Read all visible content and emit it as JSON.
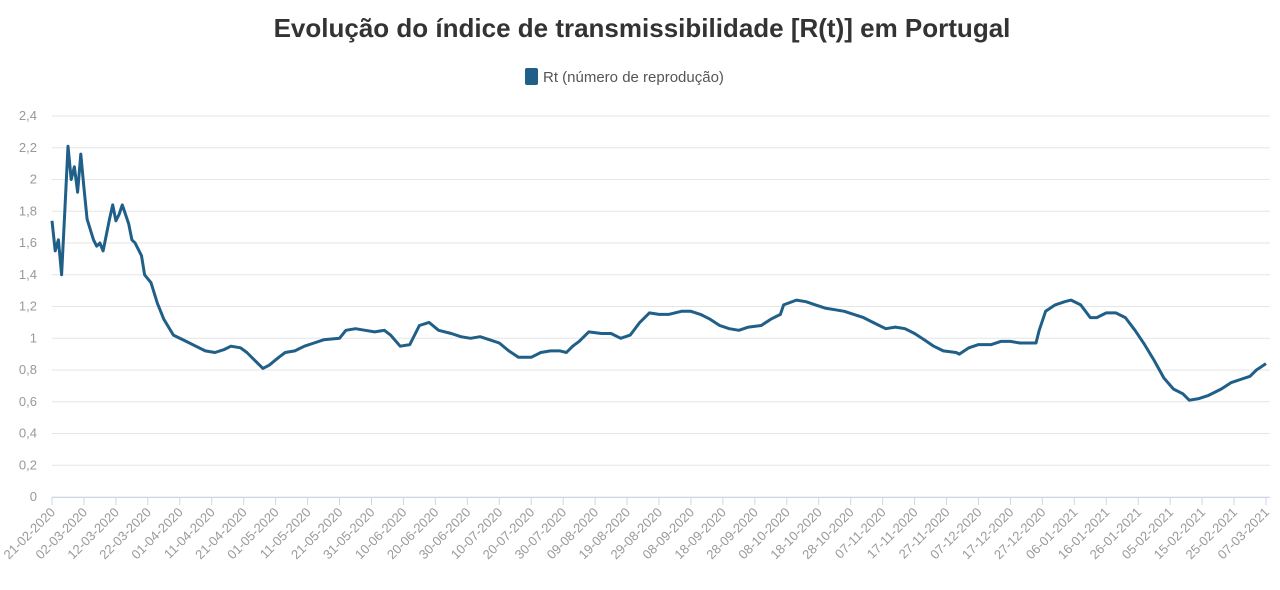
{
  "chart_data": {
    "type": "line",
    "title": "Evolução do índice de transmissibilidade [R(t)] em Portugal",
    "series": [
      {
        "name": "Rt (número de reprodução)",
        "color": "#1f5f88",
        "values": [
          1.74,
          1.55,
          1.62,
          1.4,
          1.8,
          2.21,
          2.0,
          2.08,
          1.92,
          2.16,
          1.95,
          1.75,
          1.62,
          1.58,
          1.6,
          1.55,
          1.75,
          1.84,
          1.74,
          1.78,
          1.84,
          1.78,
          1.72,
          1.62,
          1.6,
          1.52,
          1.4,
          1.35,
          1.22,
          1.12,
          1.02,
          0.98,
          0.95,
          0.92,
          0.91,
          0.93,
          0.95,
          0.94,
          0.91,
          0.85,
          0.81,
          0.83,
          0.88,
          0.91,
          0.92,
          0.95,
          0.97,
          0.99,
          1.0,
          1.05,
          1.06,
          1.05,
          1.04,
          1.05,
          1.02,
          0.95,
          0.96,
          1.08,
          1.1,
          1.05,
          1.03,
          1.01,
          1.0,
          1.01,
          0.99,
          0.97,
          0.92,
          0.88,
          0.88,
          0.91,
          0.92,
          0.92,
          0.91,
          0.95,
          0.98,
          1.04,
          1.03,
          1.03,
          1.0,
          1.02,
          1.1,
          1.16,
          1.15,
          1.15,
          1.17,
          1.17,
          1.15,
          1.12,
          1.08,
          1.06,
          1.05,
          1.07,
          1.08,
          1.12,
          1.15,
          1.21,
          1.24,
          1.23,
          1.21,
          1.19,
          1.18,
          1.17,
          1.15,
          1.13,
          1.09,
          1.06,
          1.07,
          1.06,
          1.03,
          0.99,
          0.95,
          0.92,
          0.91,
          0.9,
          0.94,
          0.96,
          0.96,
          0.98,
          0.98,
          0.97,
          0.97,
          1.05,
          1.17,
          1.21,
          1.23,
          1.24,
          1.21,
          1.13,
          1.13,
          1.16,
          1.16,
          1.13,
          1.05,
          0.96,
          0.86,
          0.75,
          0.68,
          0.65,
          0.61,
          0.62,
          0.64,
          0.68,
          0.72,
          0.74,
          0.76,
          0.8,
          0.84
        ]
      }
    ],
    "x": [
      "21-02-2020",
      "22-02-2020",
      "23-02-2020",
      "24-02-2020",
      "25-02-2020",
      "26-02-2020",
      "27-02-2020",
      "28-02-2020",
      "29-02-2020",
      "01-03-2020",
      "02-03-2020",
      "03-03-2020",
      "05-03-2020",
      "06-03-2020",
      "07-03-2020",
      "08-03-2020",
      "10-03-2020",
      "11-03-2020",
      "12-03-2020",
      "13-03-2020",
      "14-03-2020",
      "15-03-2020",
      "16-03-2020",
      "17-03-2020",
      "18-03-2020",
      "20-03-2020",
      "21-03-2020",
      "23-03-2020",
      "25-03-2020",
      "27-03-2020",
      "30-03-2020",
      "03-04-2020",
      "06-04-2020",
      "09-04-2020",
      "12-04-2020",
      "15-04-2020",
      "17-04-2020",
      "20-04-2020",
      "22-04-2020",
      "25-04-2020",
      "27-04-2020",
      "29-04-2020",
      "02-05-2020",
      "04-05-2020",
      "07-05-2020",
      "10-05-2020",
      "13-05-2020",
      "16-05-2020",
      "21-05-2020",
      "23-05-2020",
      "26-05-2020",
      "29-05-2020",
      "01-06-2020",
      "04-06-2020",
      "06-06-2020",
      "09-06-2020",
      "12-06-2020",
      "15-06-2020",
      "18-06-2020",
      "21-06-2020",
      "25-06-2020",
      "28-06-2020",
      "01-07-2020",
      "04-07-2020",
      "07-07-2020",
      "10-07-2020",
      "13-07-2020",
      "16-07-2020",
      "20-07-2020",
      "23-07-2020",
      "26-07-2020",
      "29-07-2020",
      "31-07-2020",
      "02-08-2020",
      "04-08-2020",
      "07-08-2020",
      "11-08-2020",
      "14-08-2020",
      "17-08-2020",
      "20-08-2020",
      "23-08-2020",
      "26-08-2020",
      "29-08-2020",
      "01-09-2020",
      "05-09-2020",
      "08-09-2020",
      "11-09-2020",
      "14-09-2020",
      "17-09-2020",
      "20-09-2020",
      "23-09-2020",
      "26-09-2020",
      "30-09-2020",
      "03-10-2020",
      "06-10-2020",
      "07-10-2020",
      "11-10-2020",
      "14-10-2020",
      "17-10-2020",
      "20-10-2020",
      "23-10-2020",
      "26-10-2020",
      "29-10-2020",
      "01-11-2020",
      "05-11-2020",
      "08-11-2020",
      "11-11-2020",
      "14-11-2020",
      "17-11-2020",
      "20-11-2020",
      "23-11-2020",
      "26-11-2020",
      "30-11-2020",
      "01-12-2020",
      "04-12-2020",
      "07-12-2020",
      "11-12-2020",
      "14-12-2020",
      "17-12-2020",
      "20-12-2020",
      "25-12-2020",
      "26-12-2020",
      "28-12-2020",
      "31-12-2020",
      "03-01-2021",
      "05-01-2021",
      "08-01-2021",
      "11-01-2021",
      "13-01-2021",
      "16-01-2021",
      "19-01-2021",
      "22-01-2021",
      "25-01-2021",
      "28-01-2021",
      "31-01-2021",
      "03-02-2021",
      "06-02-2021",
      "09-02-2021",
      "11-02-2021",
      "14-02-2021",
      "17-02-2021",
      "21-02-2021",
      "24-02-2021",
      "27-02-2021",
      "02-03-2021",
      "04-03-2021",
      "07-03-2021"
    ],
    "xlim": [
      "21-02-2020",
      "07-03-2021"
    ],
    "xticks": [
      "21-02-2020",
      "02-03-2020",
      "12-03-2020",
      "22-03-2020",
      "01-04-2020",
      "11-04-2020",
      "21-04-2020",
      "01-05-2020",
      "11-05-2020",
      "21-05-2020",
      "31-05-2020",
      "10-06-2020",
      "20-06-2020",
      "30-06-2020",
      "10-07-2020",
      "20-07-2020",
      "30-07-2020",
      "09-08-2020",
      "19-08-2020",
      "29-08-2020",
      "08-09-2020",
      "18-09-2020",
      "28-09-2020",
      "08-10-2020",
      "18-10-2020",
      "28-10-2020",
      "07-11-2020",
      "17-11-2020",
      "27-11-2020",
      "07-12-2020",
      "17-12-2020",
      "27-12-2020",
      "06-01-2021",
      "16-01-2021",
      "26-01-2021",
      "05-02-2021",
      "15-02-2021",
      "25-02-2021",
      "07-03-2021"
    ],
    "ylim": [
      0,
      2.4
    ],
    "yticks": [
      0,
      {
        "value": 0.2,
        "label": "0,2"
      },
      {
        "value": 0.4,
        "label": "0,4"
      },
      {
        "value": 0.6,
        "label": "0,6"
      },
      {
        "value": 0.8,
        "label": "0,8"
      },
      1,
      {
        "value": 1.2,
        "label": "1,2"
      },
      {
        "value": 1.4,
        "label": "1,4"
      },
      {
        "value": 1.6,
        "label": "1,6"
      },
      {
        "value": 1.8,
        "label": "1,8"
      },
      2,
      {
        "value": 2.2,
        "label": "2,2"
      },
      {
        "value": 2.4,
        "label": "2,4"
      }
    ],
    "grid": true,
    "legend": "top"
  }
}
